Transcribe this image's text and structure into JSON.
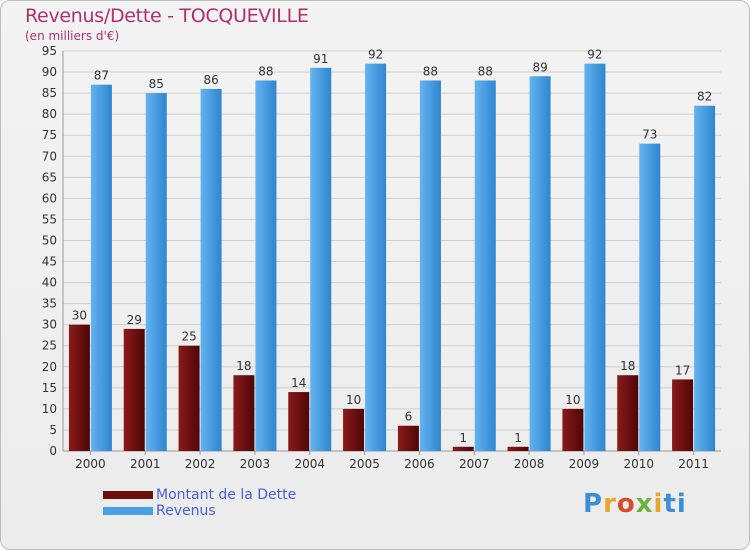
{
  "header": {
    "title": "Revenus/Dette - TOCQUEVILLE",
    "subtitle": "(en milliers d'€)"
  },
  "colors": {
    "dette": "#6b0e0e",
    "revenus": "#4aa0e6",
    "grid": "#cfcfcf",
    "axis_text": "#333333"
  },
  "legend": {
    "items": [
      {
        "label": "Montant de la Dette",
        "color": "#6b0e0e"
      },
      {
        "label": "Revenus",
        "color": "#4aa0e6"
      }
    ]
  },
  "logo": {
    "text": "Proxiti"
  },
  "chart_data": {
    "type": "bar",
    "title": "Revenus/Dette - TOCQUEVILLE",
    "subtitle": "(en milliers d'€)",
    "categories": [
      "2000",
      "2001",
      "2002",
      "2003",
      "2004",
      "2005",
      "2006",
      "2007",
      "2008",
      "2009",
      "2010",
      "2011"
    ],
    "series": [
      {
        "name": "Montant de la Dette",
        "values": [
          30,
          29,
          25,
          18,
          14,
          10,
          6,
          1,
          1,
          10,
          18,
          17
        ]
      },
      {
        "name": "Revenus",
        "values": [
          87,
          85,
          86,
          88,
          91,
          92,
          88,
          88,
          89,
          92,
          73,
          82
        ]
      }
    ],
    "ylim": [
      0,
      95
    ],
    "ytick_step": 5,
    "grid": true,
    "legend_position": "bottom-left"
  }
}
